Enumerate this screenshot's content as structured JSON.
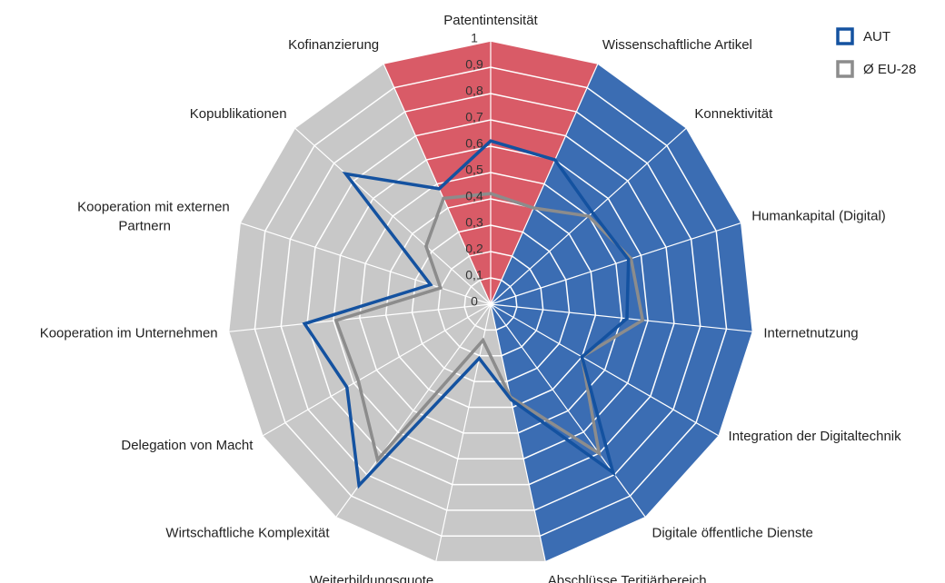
{
  "chart_data": {
    "type": "radar",
    "categories": [
      "Patentintensität",
      "Wissenschaftliche Artikel",
      "Konnektivität",
      "Humankapital (Digital)",
      "Internetnutzung",
      "Integration der Digitaltechnik",
      "Digitale öffentliche Dienste",
      "Abschlüsse Teritiärbereich",
      "Weiterbildungsquote",
      "Wirtschaftliche Komplexität",
      "Delegation von Macht",
      "Kooperation im Unternehmen",
      "Kooperation mit externen Partnern",
      "Kopublikationen",
      "Kofinanzierung"
    ],
    "series": [
      {
        "name": "AUT",
        "color": "#1452a0",
        "values": [
          0.62,
          0.6,
          0.52,
          0.55,
          0.52,
          0.4,
          0.79,
          0.37,
          0.21,
          0.85,
          0.63,
          0.71,
          0.24,
          0.74,
          0.48
        ]
      },
      {
        "name": "Ø EU-28",
        "color": "#8c8c8c",
        "values": [
          0.42,
          0.4,
          0.5,
          0.56,
          0.58,
          0.4,
          0.7,
          0.36,
          0.14,
          0.73,
          0.58,
          0.59,
          0.2,
          0.33,
          0.44
        ]
      }
    ],
    "sector_colors": [
      "#d95b67",
      "#3b6db3",
      "#3b6db3",
      "#3b6db3",
      "#3b6db3",
      "#3b6db3",
      "#3b6db3",
      "#c8c8c8",
      "#c8c8c8",
      "#c8c8c8",
      "#c8c8c8",
      "#c8c8c8",
      "#c8c8c8",
      "#c8c8c8",
      "#d95b67"
    ],
    "ylim": [
      0,
      1
    ],
    "yticks": [
      0,
      {
        "value": 0.1,
        "label": "0,1"
      },
      {
        "value": 0.2,
        "label": "0,2"
      },
      {
        "value": 0.3,
        "label": "0,3"
      },
      {
        "value": 0.4,
        "label": "0,4"
      },
      {
        "value": 0.5,
        "label": "0,5"
      },
      {
        "value": 0.6,
        "label": "0,6"
      },
      {
        "value": 0.7,
        "label": "0,7"
      },
      {
        "value": 0.8,
        "label": "0,8"
      },
      {
        "value": 0.9,
        "label": "0,9"
      },
      1
    ],
    "grid": true,
    "legend": "top-right"
  }
}
